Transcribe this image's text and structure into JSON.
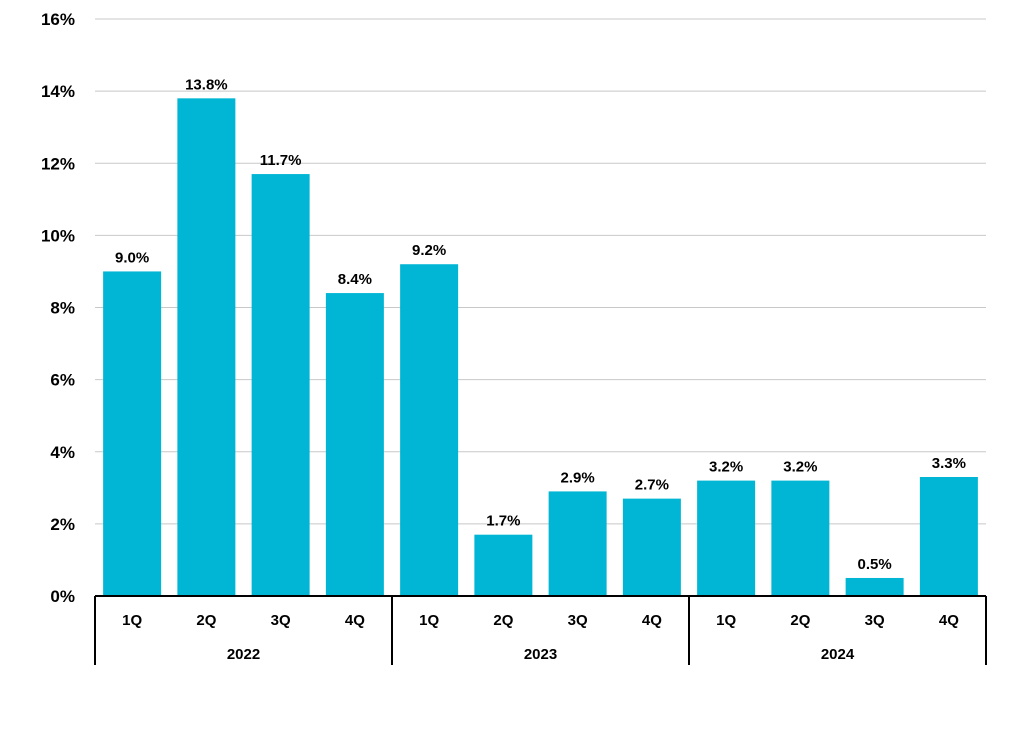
{
  "chart_data": {
    "type": "bar",
    "title": "",
    "xlabel": "",
    "ylabel": "",
    "ylim": [
      0,
      16
    ],
    "y_tick_values": [
      0,
      2,
      4,
      6,
      8,
      10,
      12,
      14,
      16
    ],
    "y_tick_labels": [
      "0%",
      "2%",
      "4%",
      "6%",
      "8%",
      "10%",
      "12%",
      "14%",
      "16%"
    ],
    "grid": true,
    "legend": "none",
    "groups": [
      {
        "label": "2022",
        "categories": [
          "1Q",
          "2Q",
          "3Q",
          "4Q"
        ]
      },
      {
        "label": "2023",
        "categories": [
          "1Q",
          "2Q",
          "3Q",
          "4Q"
        ]
      },
      {
        "label": "2024",
        "categories": [
          "1Q",
          "2Q",
          "3Q",
          "4Q"
        ]
      }
    ],
    "categories": [
      "1Q",
      "2Q",
      "3Q",
      "4Q",
      "1Q",
      "2Q",
      "3Q",
      "4Q",
      "1Q",
      "2Q",
      "3Q",
      "4Q"
    ],
    "values": [
      9.0,
      13.8,
      11.7,
      8.4,
      9.2,
      1.7,
      2.9,
      2.7,
      3.2,
      3.2,
      0.5,
      3.3
    ],
    "data_labels": [
      "9.0%",
      "13.8%",
      "11.7%",
      "8.4%",
      "9.2%",
      "1.7%",
      "2.9%",
      "2.7%",
      "3.2%",
      "3.2%",
      "0.5%",
      "3.3%"
    ],
    "colors": {
      "bar": "#00B6D4",
      "grid": "#c8c8c8",
      "axis": "#000000"
    }
  }
}
